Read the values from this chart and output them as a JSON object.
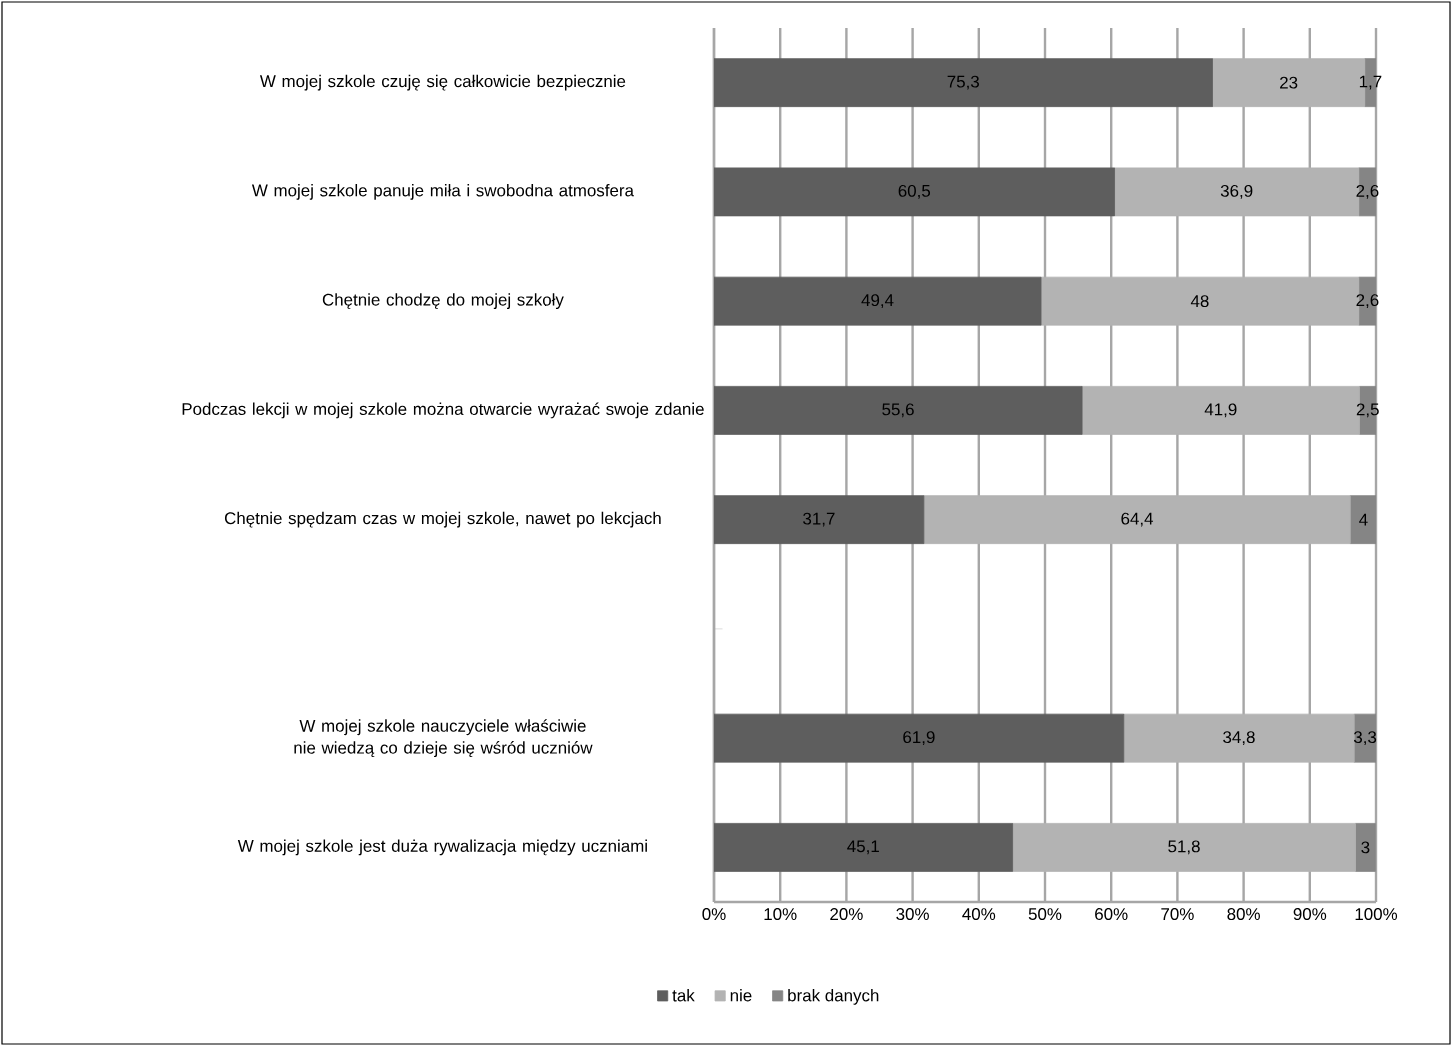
{
  "chart_data": {
    "type": "bar",
    "orientation": "horizontal",
    "stacked": true,
    "categories": [
      "W mojej szkole czuję się całkowicie bezpiecznie",
      "W mojej szkole panuje miła i swobodna atmosfera",
      "Chętnie chodzę do mojej szkoły",
      "Podczas lekcji w mojej szkole można otwarcie wyrażać swoje zdanie",
      "Chętnie spędzam czas w mojej szkole, nawet po lekcjach",
      null,
      "W mojej szkole nauczyciele właściwie nie wiedzą co dzieje się wśród uczniów",
      "W mojej szkole jest duża rywalizacja między uczniami"
    ],
    "series": [
      {
        "name": "tak",
        "color": "#5e5e5e",
        "values": [
          75.3,
          60.5,
          49.4,
          55.6,
          31.7,
          null,
          61.9,
          45.1
        ],
        "value_labels": [
          "75,3",
          "60,5",
          "49,4",
          "55,6",
          "31,7",
          null,
          "61,9",
          "45,1"
        ]
      },
      {
        "name": "nie",
        "color": "#b3b3b3",
        "values": [
          23,
          36.9,
          48,
          41.9,
          64.4,
          null,
          34.8,
          51.8
        ],
        "value_labels": [
          "23",
          "36,9",
          "48",
          "41,9",
          "64,4",
          null,
          "34,8",
          "51,8"
        ]
      },
      {
        "name": "brak danych",
        "color": "#858585",
        "values": [
          1.7,
          2.6,
          2.6,
          2.5,
          4,
          null,
          3.3,
          3
        ],
        "value_labels": [
          "1,7",
          "2,6",
          "2,6",
          "2,5",
          "4",
          null,
          "3,3",
          "3"
        ]
      }
    ],
    "xlim": [
      0,
      100
    ],
    "xticks": [
      {
        "value": 0,
        "label": "0%"
      },
      {
        "value": 10,
        "label": "10%"
      },
      {
        "value": 20,
        "label": "20%"
      },
      {
        "value": 30,
        "label": "30%"
      },
      {
        "value": 40,
        "label": "40%"
      },
      {
        "value": 50,
        "label": "50%"
      },
      {
        "value": 60,
        "label": "60%"
      },
      {
        "value": 70,
        "label": "70%"
      },
      {
        "value": 80,
        "label": "80%"
      },
      {
        "value": 90,
        "label": "90%"
      },
      {
        "value": 100,
        "label": "100%"
      }
    ],
    "grid": "x",
    "legend": "bottom"
  }
}
